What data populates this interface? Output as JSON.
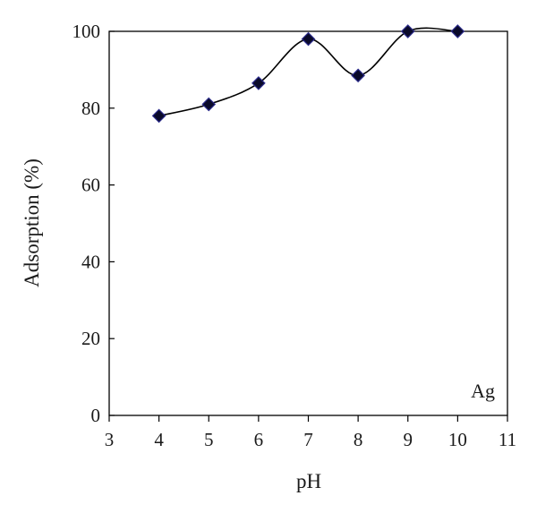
{
  "chart_data": {
    "type": "line",
    "title": "",
    "xlabel": "pH",
    "ylabel": "Adsorption (%)",
    "xlim": [
      3,
      11
    ],
    "ylim": [
      0,
      100
    ],
    "xticks": [
      3,
      4,
      5,
      6,
      7,
      8,
      9,
      10,
      11
    ],
    "yticks": [
      0,
      20,
      40,
      60,
      80,
      100
    ],
    "grid": false,
    "legend": "none",
    "annotation": "Ag",
    "line_style": "smooth",
    "colors": {
      "line": "#000000",
      "marker_fill": "#0a0a2a",
      "marker_edge": "#2a2a8a",
      "axis": "#000000"
    },
    "series": [
      {
        "marker": "diamond",
        "x": [
          4,
          5,
          6,
          7,
          8,
          9,
          10
        ],
        "y": [
          78,
          81,
          86.5,
          98,
          88.5,
          100,
          100
        ]
      }
    ]
  }
}
